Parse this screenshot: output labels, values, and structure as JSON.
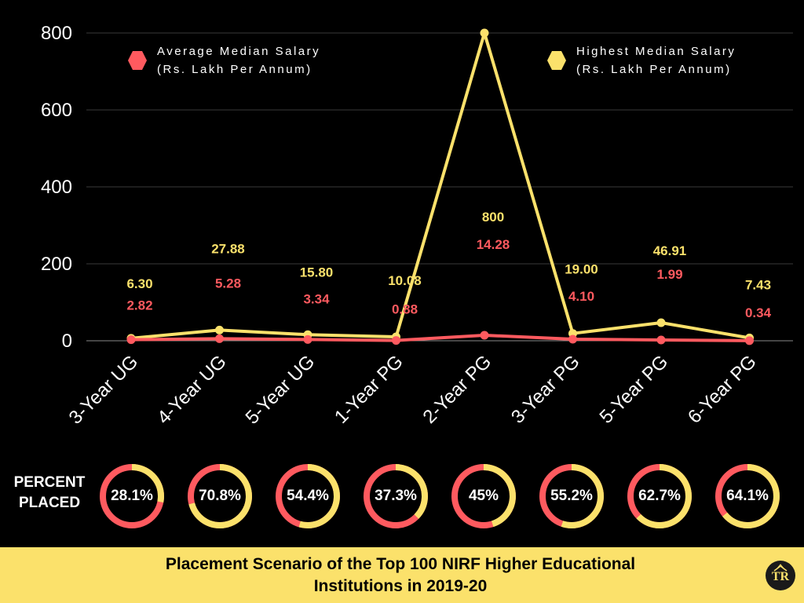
{
  "chart_data": {
    "type": "line",
    "categories": [
      "3-Year UG",
      "4-Year UG",
      "5-Year UG",
      "1-Year PG",
      "2-Year PG",
      "3-Year PG",
      "5-Year PG",
      "6-Year PG"
    ],
    "series": [
      {
        "name": "Average Median Salary (Rs. Lakh Per Annum)",
        "legend_lines": [
          "Average  Median  Salary",
          "(Rs. Lakh Per Annum)"
        ],
        "color": "#ff5a5f",
        "values": [
          2.82,
          5.28,
          3.34,
          0.88,
          14.28,
          4.1,
          1.99,
          0.34
        ],
        "labels": [
          "2.82",
          "5.28",
          "3.34",
          "0.88",
          "14.28",
          "4.10",
          "1.99",
          "0.34"
        ]
      },
      {
        "name": "Highest Median Salary (Rs. Lakh Per Annum)",
        "legend_lines": [
          "Highest Median Salary",
          "(Rs. Lakh Per Annum)"
        ],
        "color": "#fbe16b",
        "values": [
          6.3,
          27.88,
          15.8,
          10.08,
          800,
          19.0,
          46.91,
          7.43
        ],
        "labels": [
          "6.30",
          "27.88",
          "15.80",
          "10.08",
          "800",
          "19.00",
          "46.91",
          "7.43"
        ]
      }
    ],
    "yticks": [
      0,
      200,
      400,
      600,
      800
    ],
    "ylim": [
      0,
      800
    ],
    "grid": true,
    "xlabel_rotation_deg": -45
  },
  "percent_placed": {
    "label_lines": [
      "PERCENT",
      "PLACED"
    ],
    "values": [
      28.1,
      70.8,
      54.4,
      37.3,
      45,
      55.2,
      62.7,
      64.1
    ],
    "labels": [
      "28.1%",
      "70.8%",
      "54.4%",
      "37.3%",
      "45%",
      "55.2%",
      "62.7%",
      "64.1%"
    ],
    "placed_color": "#fbe16b",
    "remaining_color": "#ff5a5f"
  },
  "footer": {
    "title_lines": [
      "Placement Scenario of the Top 100 NIRF Higher Educational",
      "Institutions in 2019-20"
    ],
    "background": "#fbe16b",
    "logo_text": "TR"
  }
}
